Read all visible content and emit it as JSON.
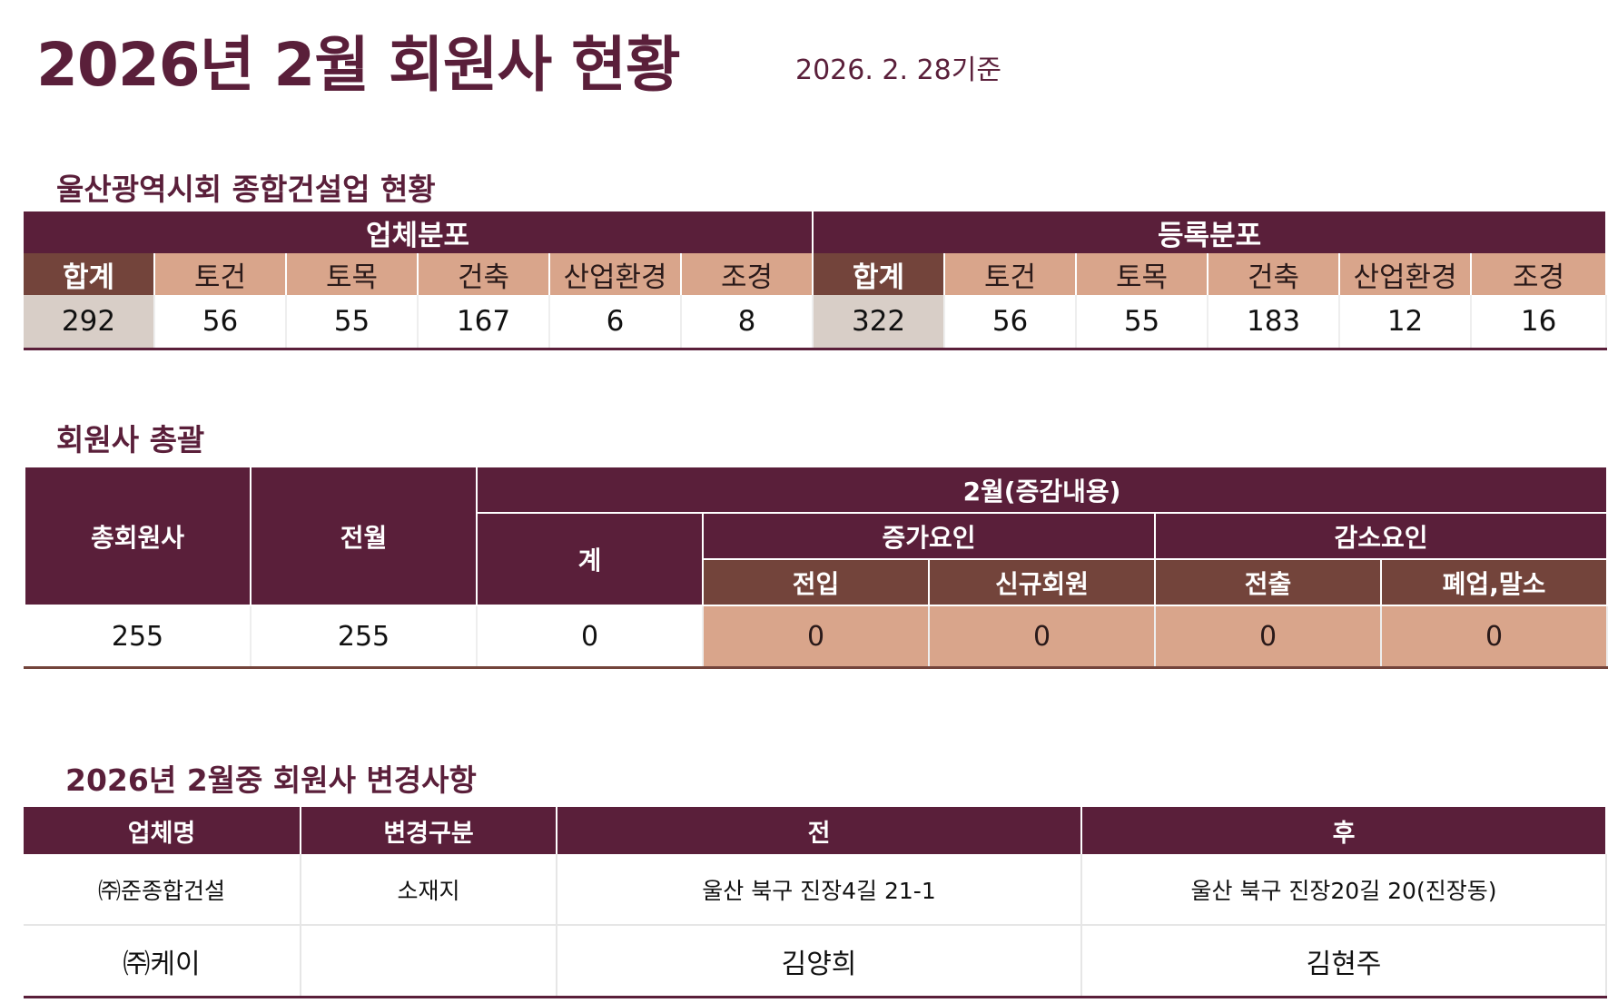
{
  "header": {
    "title": "2026년 2월 회원사 현황",
    "as_of": "2026. 2. 28기준"
  },
  "section1": {
    "title": "울산광역시회 종합건설업 현황",
    "group1": "업체분포",
    "group2": "등록분포",
    "columns": [
      "합계",
      "토건",
      "토목",
      "건축",
      "산업환경",
      "조경"
    ],
    "company_values": [
      "292",
      "56",
      "55",
      "167",
      "6",
      "8"
    ],
    "registration_values": [
      "322",
      "56",
      "55",
      "183",
      "12",
      "16"
    ]
  },
  "section2": {
    "title": "회원사 총괄",
    "total_label": "총회원사",
    "prev_label": "전월",
    "month_label": "2월(증감내용)",
    "sum_label": "계",
    "increase_label": "증가요인",
    "decrease_label": "감소요인",
    "transfer_in": "전입",
    "new_member": "신규회원",
    "transfer_out": "전출",
    "closure": "폐업,말소",
    "values": {
      "total": "255",
      "prev": "255",
      "sum": "0",
      "transfer_in": "0",
      "new_member": "0",
      "transfer_out": "0",
      "closure": "0"
    }
  },
  "section3": {
    "title": "2026년 2월중 회원사 변경사항",
    "headers": [
      "업체명",
      "변경구분",
      "전",
      "후"
    ],
    "rows": [
      {
        "company": "㈜준종합건설",
        "type": "소재지",
        "before": "울산 북구 진장4길 21-1",
        "after": "울산 북구 진장20길 20(진장동)"
      },
      {
        "company": "㈜케이",
        "type": "",
        "before": "김양희",
        "after": "김현주"
      }
    ]
  },
  "colors": {
    "primary": "#5a1f3a",
    "secondary": "#73443b",
    "accent": "#d9a58b",
    "gray": "#d8cec7"
  }
}
